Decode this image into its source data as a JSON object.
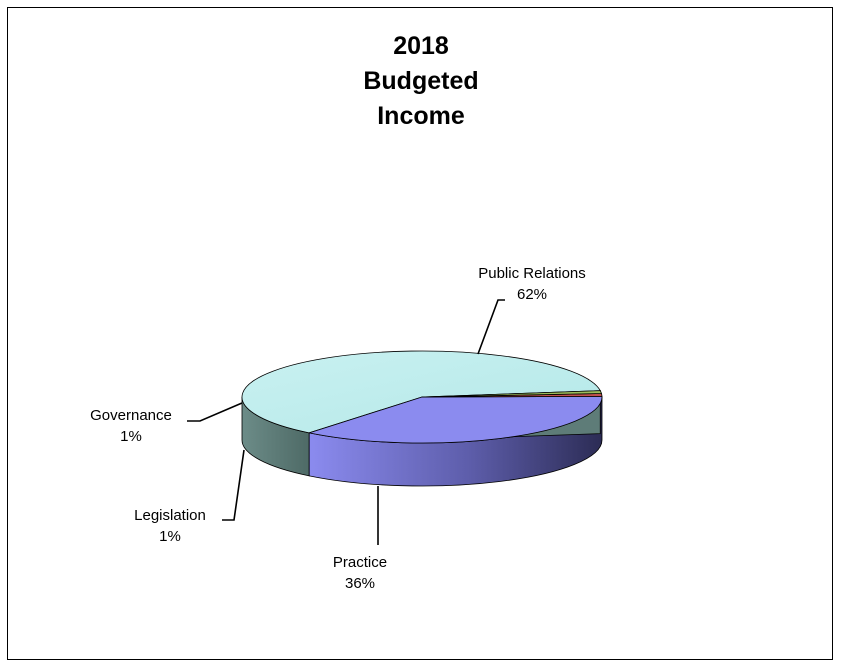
{
  "chart_data": {
    "type": "pie",
    "title_lines": [
      "2018",
      "Budgeted",
      "Income"
    ],
    "categories": [
      "Public Relations",
      "Practice",
      "Legislation",
      "Governance"
    ],
    "values": [
      62,
      36,
      1,
      1
    ],
    "percent_labels": [
      "62%",
      "36%",
      "1%",
      "1%"
    ],
    "colors": [
      "#BDECEC",
      "#8B8BEF",
      "#C0504D",
      "#9BBB59"
    ],
    "side_colors": [
      "#5E7C78",
      "#3A3A6E",
      "#8A2B28",
      "#5E7A2E"
    ],
    "three_d": true,
    "legend": "none"
  }
}
